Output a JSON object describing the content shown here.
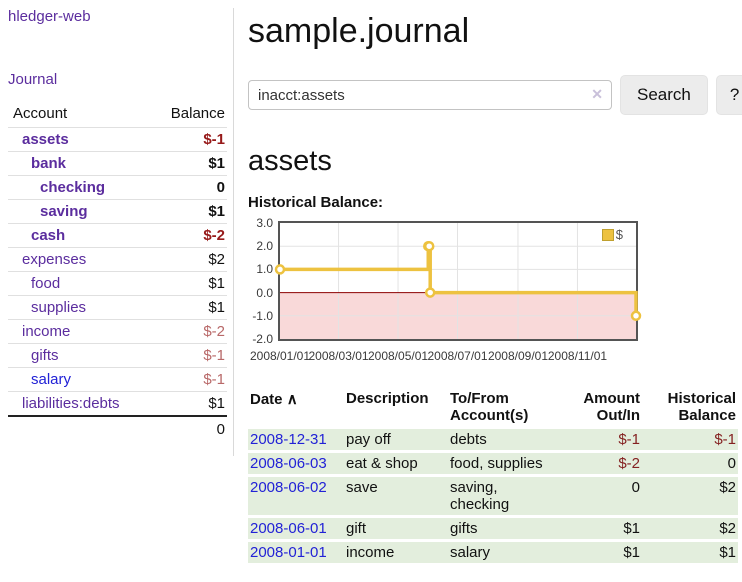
{
  "app": {
    "title": "hledger-web"
  },
  "sidebar": {
    "journal_link": "Journal",
    "accounts_table": {
      "headers": [
        "Account",
        "Balance"
      ],
      "rows": [
        {
          "name": "assets",
          "level": 1,
          "bold": true,
          "link_color": "purple",
          "balance": "$-1",
          "balance_class": "neg-bold"
        },
        {
          "name": "bank",
          "level": 2,
          "bold": true,
          "link_color": "purple",
          "balance": "$1",
          "balance_class": "pos-bold"
        },
        {
          "name": "checking",
          "level": 3,
          "bold": true,
          "link_color": "purple",
          "balance": "0",
          "balance_class": "pos-bold"
        },
        {
          "name": "saving",
          "level": 3,
          "bold": true,
          "link_color": "purple",
          "balance": "$1",
          "balance_class": "pos-bold"
        },
        {
          "name": "cash",
          "level": 2,
          "bold": true,
          "link_color": "purple",
          "balance": "$-2",
          "balance_class": "neg-bold"
        },
        {
          "name": "expenses",
          "level": 1,
          "bold": false,
          "link_color": "purple",
          "balance": "$2",
          "balance_class": "pos"
        },
        {
          "name": "food",
          "level": 2,
          "bold": false,
          "link_color": "purple",
          "balance": "$1",
          "balance_class": "pos"
        },
        {
          "name": "supplies",
          "level": 2,
          "bold": false,
          "link_color": "purple",
          "balance": "$1",
          "balance_class": "pos"
        },
        {
          "name": "income",
          "level": 1,
          "bold": false,
          "link_color": "purple",
          "balance": "$-2",
          "balance_class": "neg-light"
        },
        {
          "name": "gifts",
          "level": 2,
          "bold": false,
          "link_color": "purple",
          "balance": "$-1",
          "balance_class": "neg-light"
        },
        {
          "name": "salary",
          "level": 2,
          "bold": false,
          "link_color": "blue",
          "balance": "$-1",
          "balance_class": "neg-light"
        },
        {
          "name": "liabilities:debts",
          "level": 1,
          "bold": false,
          "link_color": "purple",
          "balance": "$1",
          "balance_class": "pos"
        }
      ],
      "total": "0"
    }
  },
  "header": {
    "title": "sample.journal"
  },
  "search": {
    "value": "inacct:assets",
    "clear_icon": "✕",
    "button_label": "Search",
    "help_label": "?"
  },
  "account_page": {
    "heading": "assets",
    "chart_label": "Historical Balance:"
  },
  "chart_data": {
    "type": "line",
    "title": "Historical Balance",
    "steps": true,
    "legend_position": "top-right",
    "legend": [
      {
        "label": "$",
        "color": "#EDC240"
      }
    ],
    "ylim": [
      -2,
      3
    ],
    "y_ticks": [
      {
        "value": 3,
        "label": "3.0"
      },
      {
        "value": 2,
        "label": "2.0"
      },
      {
        "value": 1,
        "label": "1.0"
      },
      {
        "value": 0,
        "label": "0.0"
      },
      {
        "value": -1,
        "label": "-1.0"
      },
      {
        "value": -2,
        "label": "-2.0"
      }
    ],
    "x_range": [
      "2008-01-01",
      "2008-12-31"
    ],
    "x_ticks": [
      {
        "date": "2008-01-01",
        "label": "2008/01/01"
      },
      {
        "date": "2008-03-01",
        "label": "2008/03/01"
      },
      {
        "date": "2008-05-01",
        "label": "2008/05/01"
      },
      {
        "date": "2008-07-01",
        "label": "2008/07/01"
      },
      {
        "date": "2008-09-01",
        "label": "2008/09/01"
      },
      {
        "date": "2008-11-01",
        "label": "2008/11/01"
      }
    ],
    "series": [
      {
        "name": "$",
        "color": "#EDC240",
        "points": [
          [
            "2008-01-01",
            1
          ],
          [
            "2008-06-01",
            2
          ],
          [
            "2008-06-02",
            2
          ],
          [
            "2008-06-03",
            0
          ],
          [
            "2008-12-31",
            -1
          ]
        ]
      }
    ],
    "grid_color": "#e3e3e3",
    "negative_region_color": "#f9d9d9",
    "zero_line_color": "#8b0000"
  },
  "transactions": {
    "headers": [
      "Date",
      "Description",
      "To/From Account(s)",
      "Amount Out/In",
      "Historical Balance"
    ],
    "sort_indicator": "∧",
    "rows": [
      {
        "date": "2008-12-31",
        "description": "pay off",
        "accounts": "debts",
        "amount": "$-1",
        "amount_class": "amt-neg",
        "balance": "$-1",
        "balance_class": "amt-neg"
      },
      {
        "date": "2008-06-03",
        "description": "eat & shop",
        "accounts": "food, supplies",
        "amount": "$-2",
        "amount_class": "amt-neg",
        "balance": "0",
        "balance_class": ""
      },
      {
        "date": "2008-06-02",
        "description": "save",
        "accounts": "saving, checking",
        "amount": "0",
        "amount_class": "",
        "balance": "$2",
        "balance_class": ""
      },
      {
        "date": "2008-06-01",
        "description": "gift",
        "accounts": "gifts",
        "amount": "$1",
        "amount_class": "",
        "balance": "$2",
        "balance_class": ""
      },
      {
        "date": "2008-01-01",
        "description": "income",
        "accounts": "salary",
        "amount": "$1",
        "amount_class": "",
        "balance": "$1",
        "balance_class": ""
      }
    ]
  }
}
